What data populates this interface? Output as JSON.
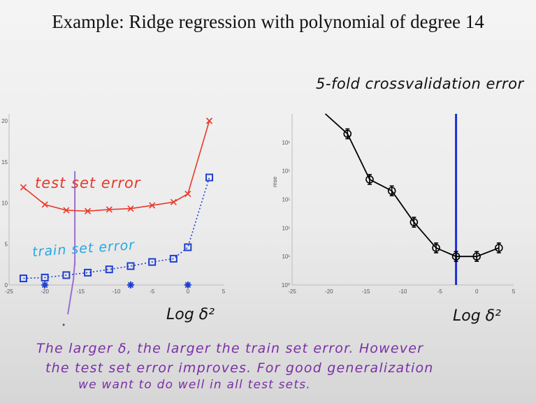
{
  "slide": {
    "title": "Example: Ridge regression with polynomial of degree 14"
  },
  "annotations": {
    "cv_title": "5-fold crossvalidation error",
    "test_label": "test set error",
    "train_label": "train set error",
    "xlabel_left": "Log δ²",
    "xlabel_right": "Log δ²",
    "note_line1": "The larger δ, the larger the train set error. However",
    "note_line2": "the test set error improves. For good generalization",
    "note_line3": "we want to do well in all test sets."
  },
  "chart_data": [
    {
      "type": "line",
      "xlim": [
        -25,
        5
      ],
      "ylim": [
        0,
        20
      ],
      "x_ticks": [
        "-25",
        "-20",
        "-15",
        "-10",
        "-5",
        "0",
        "5"
      ],
      "y_ticks": [
        "0",
        "5",
        "10",
        "15",
        "20"
      ],
      "series": [
        {
          "name": "test set error",
          "color": "#e8392b",
          "marker": "x",
          "x": [
            -23,
            -20,
            -17,
            -14,
            -11,
            -8,
            -5,
            -2,
            0,
            3
          ],
          "y": [
            11.9,
            9.8,
            9.1,
            9.0,
            9.2,
            9.3,
            9.7,
            10.1,
            11.1,
            20.0
          ]
        },
        {
          "name": "train set error",
          "color": "#1f3fd0",
          "marker": "square",
          "x": [
            -23,
            -20,
            -17,
            -14,
            -11,
            -8,
            -5,
            -2,
            0,
            3
          ],
          "y": [
            0.8,
            0.9,
            1.2,
            1.5,
            1.9,
            2.3,
            2.8,
            3.2,
            4.6,
            13.1
          ]
        },
        {
          "name": "chosen values",
          "color": "#1f3fd0",
          "marker": "star",
          "x": [
            -20,
            -8,
            0
          ],
          "y": [
            0,
            0,
            0
          ]
        }
      ],
      "vline_hand": {
        "x": -16,
        "color": "#9b6fd0"
      }
    },
    {
      "type": "line",
      "ylabel": "mse",
      "xlim": [
        -25,
        5
      ],
      "y_log_exp_range": [
        0,
        6
      ],
      "x_ticks": [
        "-25",
        "-20",
        "-15",
        "-10",
        "-5",
        "0",
        "5"
      ],
      "y_ticks": [
        "10⁰",
        "10¹",
        "10¹",
        "10¹",
        "10¹",
        "10¹"
      ],
      "series": [
        {
          "name": "",
          "color": "#000000",
          "marker": "errorbar-circle",
          "x": [
            -20.5,
            -17.5,
            -14.5,
            -11.5,
            -8.5,
            -5.5,
            -2.8,
            0,
            3
          ],
          "y_exp": [
            6.2,
            5.3,
            3.7,
            3.3,
            2.2,
            1.3,
            1.0,
            1.0,
            1.3
          ]
        }
      ],
      "vline": {
        "x": -2.8,
        "color": "#1d2fd6"
      }
    }
  ]
}
